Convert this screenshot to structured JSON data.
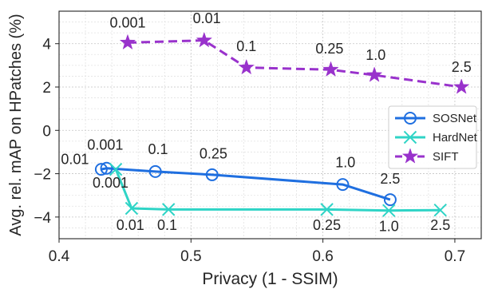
{
  "chart_data": {
    "type": "line",
    "xlabel": "Privacy (1 - SSIM)",
    "ylabel": "Avg. rel. mAP on HPatches (%)",
    "xlim": [
      0.4,
      0.72
    ],
    "ylim": [
      -5,
      5.5
    ],
    "x_ticks": [
      0.4,
      0.5,
      0.6,
      0.7
    ],
    "x_tick_labels": [
      "0.4",
      "0.5",
      "0.6",
      "0.7"
    ],
    "y_ticks": [
      -4,
      -2,
      0,
      2,
      4
    ],
    "y_tick_labels": [
      "−4",
      "−2",
      "0",
      "2",
      "4"
    ],
    "grid": "major and minor, dotted",
    "legend_position": "right",
    "series": [
      {
        "name": "SOSNet",
        "color": "#1f6fe0",
        "line_style": "solid",
        "marker": "circle",
        "points": [
          {
            "x": 0.432,
            "y": -1.8,
            "label": "0.01"
          },
          {
            "x": 0.436,
            "y": -1.75,
            "label": "0.001"
          },
          {
            "x": 0.473,
            "y": -1.9,
            "label": "0.1"
          },
          {
            "x": 0.516,
            "y": -2.05,
            "label": "0.25"
          },
          {
            "x": 0.615,
            "y": -2.5,
            "label": "1.0"
          },
          {
            "x": 0.651,
            "y": -3.2,
            "label": "2.5"
          }
        ]
      },
      {
        "name": "HardNet",
        "color": "#2fd4c6",
        "line_style": "solid",
        "marker": "x",
        "points": [
          {
            "x": 0.443,
            "y": -1.8,
            "label": "0.001"
          },
          {
            "x": 0.455,
            "y": -3.6,
            "label": "0.01"
          },
          {
            "x": 0.483,
            "y": -3.65,
            "label": "0.1"
          },
          {
            "x": 0.603,
            "y": -3.65,
            "label": "0.25"
          },
          {
            "x": 0.65,
            "y": -3.7,
            "label": "1.0"
          },
          {
            "x": 0.689,
            "y": -3.68,
            "label": "2.5"
          }
        ]
      },
      {
        "name": "SIFT",
        "color": "#9932cc",
        "line_style": "dashed",
        "marker": "star",
        "points": [
          {
            "x": 0.452,
            "y": 4.05,
            "label": "0.001"
          },
          {
            "x": 0.51,
            "y": 4.15,
            "label": "0.01"
          },
          {
            "x": 0.542,
            "y": 2.9,
            "label": "0.1"
          },
          {
            "x": 0.606,
            "y": 2.8,
            "label": "0.25"
          },
          {
            "x": 0.639,
            "y": 2.55,
            "label": "1.0"
          },
          {
            "x": 0.705,
            "y": 2.0,
            "label": "2.5"
          }
        ]
      }
    ],
    "annotations": [
      {
        "text": "0.01",
        "x": 0.412,
        "y": -1.55
      },
      {
        "text": "0.001",
        "x": 0.435,
        "y": -0.9
      },
      {
        "text": "0.1",
        "x": 0.475,
        "y": -1.1
      },
      {
        "text": "0.25",
        "x": 0.517,
        "y": -1.3
      },
      {
        "text": "1.0",
        "x": 0.617,
        "y": -1.7
      },
      {
        "text": "2.5",
        "x": 0.651,
        "y": -2.45
      },
      {
        "text": "0.001",
        "x": 0.439,
        "y": -2.65
      },
      {
        "text": "0.01",
        "x": 0.454,
        "y": -4.6
      },
      {
        "text": "0.1",
        "x": 0.482,
        "y": -4.6
      },
      {
        "text": "0.25",
        "x": 0.603,
        "y": -4.6
      },
      {
        "text": "1.0",
        "x": 0.65,
        "y": -4.65
      },
      {
        "text": "2.5",
        "x": 0.689,
        "y": -4.6
      },
      {
        "text": "0.001",
        "x": 0.452,
        "y": 4.75
      },
      {
        "text": "0.01",
        "x": 0.512,
        "y": 4.95
      },
      {
        "text": "0.1",
        "x": 0.542,
        "y": 3.65
      },
      {
        "text": "0.25",
        "x": 0.605,
        "y": 3.55
      },
      {
        "text": "1.0",
        "x": 0.64,
        "y": 3.25
      },
      {
        "text": "2.5",
        "x": 0.705,
        "y": 2.7
      }
    ]
  }
}
